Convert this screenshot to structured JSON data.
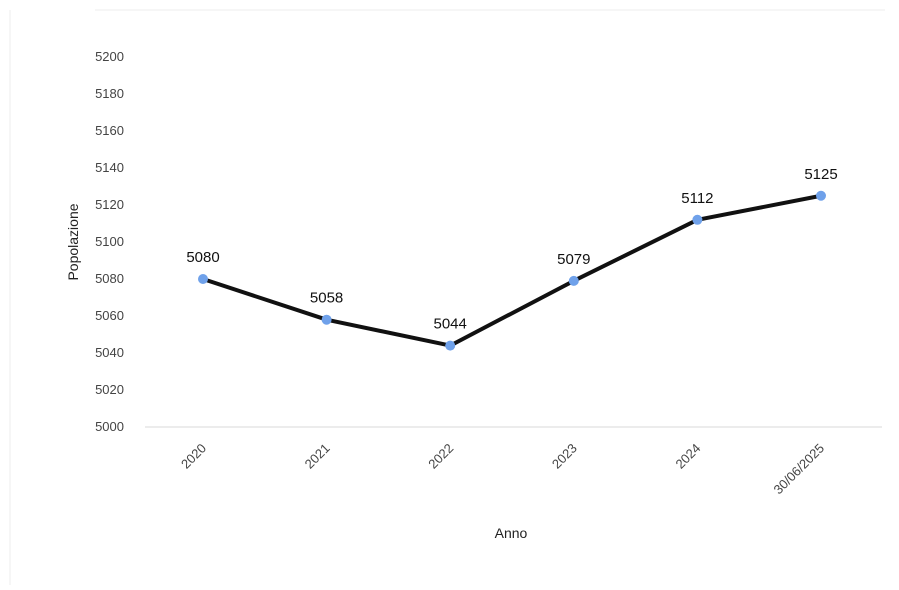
{
  "chart_data": {
    "type": "line",
    "title": "",
    "xlabel": "Anno",
    "ylabel": "Popolazione",
    "categories": [
      "2020",
      "2021",
      "2022",
      "2023",
      "2024",
      "30/06/2025"
    ],
    "series": [
      {
        "values": [
          5080,
          5058,
          5044,
          5079,
          5112,
          5125
        ]
      }
    ],
    "data_labels": [
      "5080",
      "5058",
      "5044",
      "5079",
      "5112",
      "5125"
    ],
    "ylim": [
      5000,
      5200
    ],
    "yticks": [
      "5000",
      "5020",
      "5040",
      "5060",
      "5080",
      "5100",
      "5120",
      "5140",
      "5160",
      "5180",
      "5200"
    ],
    "grid": false,
    "legend": "none",
    "colors": {
      "line": "#111111",
      "marker": "#6fa1ea",
      "axis": "#d9d9d9"
    }
  }
}
